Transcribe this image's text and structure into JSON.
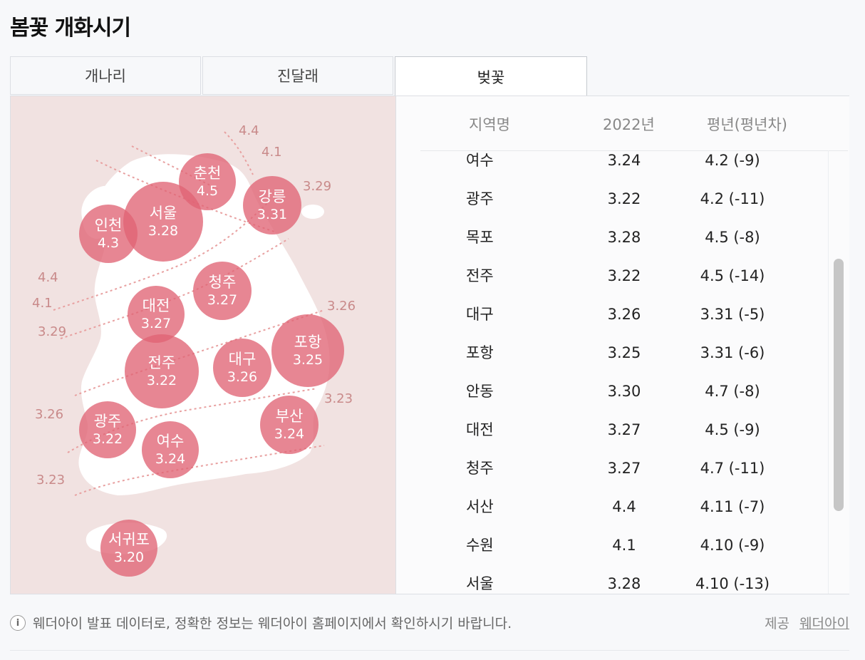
{
  "title": "봄꽃 개화시기",
  "tabs": [
    {
      "label": "개나리",
      "active": false
    },
    {
      "label": "진달래",
      "active": false
    },
    {
      "label": "벚꽃",
      "active": true
    }
  ],
  "map": {
    "regions": [
      {
        "name": "춘천",
        "date": "4.5"
      },
      {
        "name": "강릉",
        "date": "3.31"
      },
      {
        "name": "서울",
        "date": "3.28"
      },
      {
        "name": "인천",
        "date": "4.3"
      },
      {
        "name": "청주",
        "date": "3.27"
      },
      {
        "name": "대전",
        "date": "3.27"
      },
      {
        "name": "포항",
        "date": "3.25"
      },
      {
        "name": "전주",
        "date": "3.22"
      },
      {
        "name": "대구",
        "date": "3.26"
      },
      {
        "name": "부산",
        "date": "3.24"
      },
      {
        "name": "광주",
        "date": "3.22"
      },
      {
        "name": "여수",
        "date": "3.24"
      },
      {
        "name": "서귀포",
        "date": "3.20"
      }
    ],
    "isolines": [
      "4.4",
      "4.1",
      "3.29",
      "4.4",
      "4.1",
      "3.29",
      "3.26",
      "3.26",
      "3.23",
      "3.23"
    ]
  },
  "table": {
    "headers": [
      "지역명",
      "2022년",
      "평년(평년차)"
    ],
    "rows": [
      [
        "여수",
        "3.24",
        "4.2 (-9)"
      ],
      [
        "광주",
        "3.22",
        "4.2 (-11)"
      ],
      [
        "목포",
        "3.28",
        "4.5 (-8)"
      ],
      [
        "전주",
        "3.22",
        "4.5 (-14)"
      ],
      [
        "대구",
        "3.26",
        "3.31 (-5)"
      ],
      [
        "포항",
        "3.25",
        "3.31 (-6)"
      ],
      [
        "안동",
        "3.30",
        "4.7 (-8)"
      ],
      [
        "대전",
        "3.27",
        "4.5 (-9)"
      ],
      [
        "청주",
        "3.27",
        "4.7 (-11)"
      ],
      [
        "서산",
        "4.4",
        "4.11 (-7)"
      ],
      [
        "수원",
        "4.1",
        "4.10 (-9)"
      ],
      [
        "서울",
        "3.28",
        "4.10 (-13)"
      ]
    ]
  },
  "footer": {
    "info_icon": "info-icon",
    "notice": "웨더아이 발표 데이터로, 정확한 정보는 웨더아이 홈페이지에서 확인하시기 바랍니다.",
    "provider_label": "제공",
    "provider_link": "웨더아이"
  },
  "colors": {
    "circle": "#e06474",
    "map_background": "#f1e2e1",
    "land": "#ffffff",
    "isoline": "#e8a0a0"
  }
}
